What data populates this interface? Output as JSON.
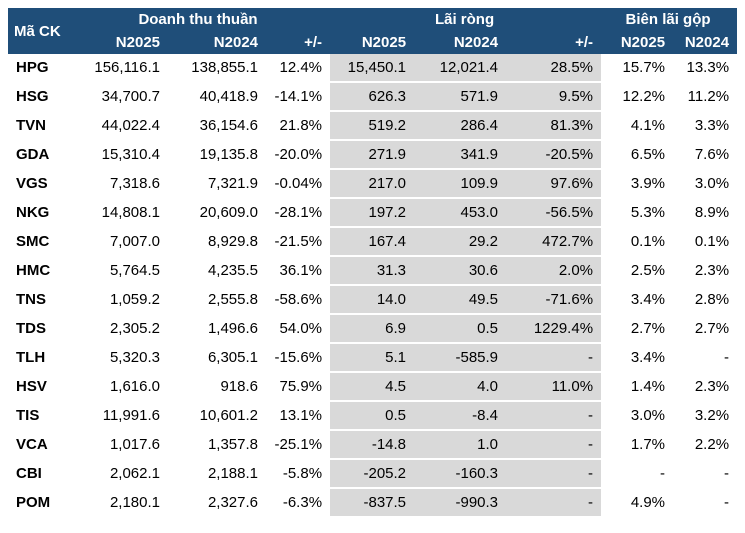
{
  "colors": {
    "header_bg": "#1F4E79",
    "header_text": "#FFFFFF",
    "shaded_column_bg": "#D9D9D9",
    "body_text": "#000000"
  },
  "chart_data": {
    "type": "table",
    "corner_label": "Mã CK",
    "column_groups": [
      {
        "label": "Doanh thu thuần",
        "span": 3
      },
      {
        "label": "Lãi ròng",
        "span": 3
      },
      {
        "label": "Biên lãi gộp",
        "span": 2
      }
    ],
    "sub_headers": [
      "N2025",
      "N2024",
      "+/-",
      "N2025",
      "N2024",
      "+/-",
      "N2025",
      "N2024"
    ],
    "shaded_value_columns": [
      3,
      4,
      5
    ],
    "rows": [
      {
        "ticker": "HPG",
        "values": [
          "156,116.1",
          "138,855.1",
          "12.4%",
          "15,450.1",
          "12,021.4",
          "28.5%",
          "15.7%",
          "13.3%"
        ]
      },
      {
        "ticker": "HSG",
        "values": [
          "34,700.7",
          "40,418.9",
          "-14.1%",
          "626.3",
          "571.9",
          "9.5%",
          "12.2%",
          "11.2%"
        ]
      },
      {
        "ticker": "TVN",
        "values": [
          "44,022.4",
          "36,154.6",
          "21.8%",
          "519.2",
          "286.4",
          "81.3%",
          "4.1%",
          "3.3%"
        ]
      },
      {
        "ticker": "GDA",
        "values": [
          "15,310.4",
          "19,135.8",
          "-20.0%",
          "271.9",
          "341.9",
          "-20.5%",
          "6.5%",
          "7.6%"
        ]
      },
      {
        "ticker": "VGS",
        "values": [
          "7,318.6",
          "7,321.9",
          "-0.04%",
          "217.0",
          "109.9",
          "97.6%",
          "3.9%",
          "3.0%"
        ]
      },
      {
        "ticker": "NKG",
        "values": [
          "14,808.1",
          "20,609.0",
          "-28.1%",
          "197.2",
          "453.0",
          "-56.5%",
          "5.3%",
          "8.9%"
        ]
      },
      {
        "ticker": "SMC",
        "values": [
          "7,007.0",
          "8,929.8",
          "-21.5%",
          "167.4",
          "29.2",
          "472.7%",
          "0.1%",
          "0.1%"
        ]
      },
      {
        "ticker": "HMC",
        "values": [
          "5,764.5",
          "4,235.5",
          "36.1%",
          "31.3",
          "30.6",
          "2.0%",
          "2.5%",
          "2.3%"
        ]
      },
      {
        "ticker": "TNS",
        "values": [
          "1,059.2",
          "2,555.8",
          "-58.6%",
          "14.0",
          "49.5",
          "-71.6%",
          "3.4%",
          "2.8%"
        ]
      },
      {
        "ticker": "TDS",
        "values": [
          "2,305.2",
          "1,496.6",
          "54.0%",
          "6.9",
          "0.5",
          "1229.4%",
          "2.7%",
          "2.7%"
        ]
      },
      {
        "ticker": "TLH",
        "values": [
          "5,320.3",
          "6,305.1",
          "-15.6%",
          "5.1",
          "-585.9",
          "-",
          "3.4%",
          "-"
        ]
      },
      {
        "ticker": "HSV",
        "values": [
          "1,616.0",
          "918.6",
          "75.9%",
          "4.5",
          "4.0",
          "11.0%",
          "1.4%",
          "2.3%"
        ]
      },
      {
        "ticker": "TIS",
        "values": [
          "11,991.6",
          "10,601.2",
          "13.1%",
          "0.5",
          "-8.4",
          "-",
          "3.0%",
          "3.2%"
        ]
      },
      {
        "ticker": "VCA",
        "values": [
          "1,017.6",
          "1,357.8",
          "-25.1%",
          "-14.8",
          "1.0",
          "-",
          "1.7%",
          "2.2%"
        ]
      },
      {
        "ticker": "CBI",
        "values": [
          "2,062.1",
          "2,188.1",
          "-5.8%",
          "-205.2",
          "-160.3",
          "-",
          "-",
          "-"
        ]
      },
      {
        "ticker": "POM",
        "values": [
          "2,180.1",
          "2,327.6",
          "-6.3%",
          "-837.5",
          "-990.3",
          "-",
          "4.9%",
          "-"
        ]
      }
    ]
  }
}
